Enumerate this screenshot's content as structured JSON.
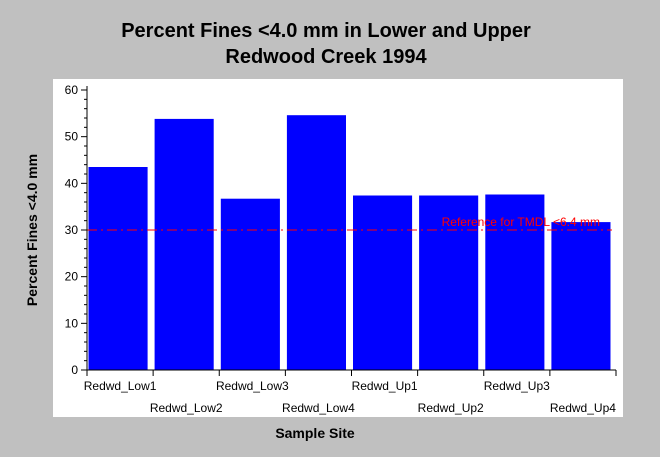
{
  "chart_data": {
    "type": "bar",
    "title_lines": [
      "Percent Fines <4.0 mm in Lower and Upper",
      "Redwood Creek 1994"
    ],
    "xlabel": "Sample Site",
    "ylabel": "Percent Fines <4.0 mm",
    "categories": [
      "Redwd_Low1",
      "Redwd_Low2",
      "Redwd_Low3",
      "Redwd_Low4",
      "Redwd_Up1",
      "Redwd_Up2",
      "Redwd_Up3",
      "Redwd_Up4"
    ],
    "values": [
      43.5,
      53.8,
      36.7,
      54.6,
      37.4,
      37.4,
      37.6,
      31.7
    ],
    "ylim": [
      0,
      60
    ],
    "yticks": [
      0,
      10,
      20,
      30,
      40,
      50,
      60
    ],
    "reference": {
      "value": 30,
      "label": "Reference for TMDL <6.4 mm",
      "color": "#ff0000"
    },
    "bar_color": "#0000ff",
    "grid": false,
    "legend": "none"
  }
}
